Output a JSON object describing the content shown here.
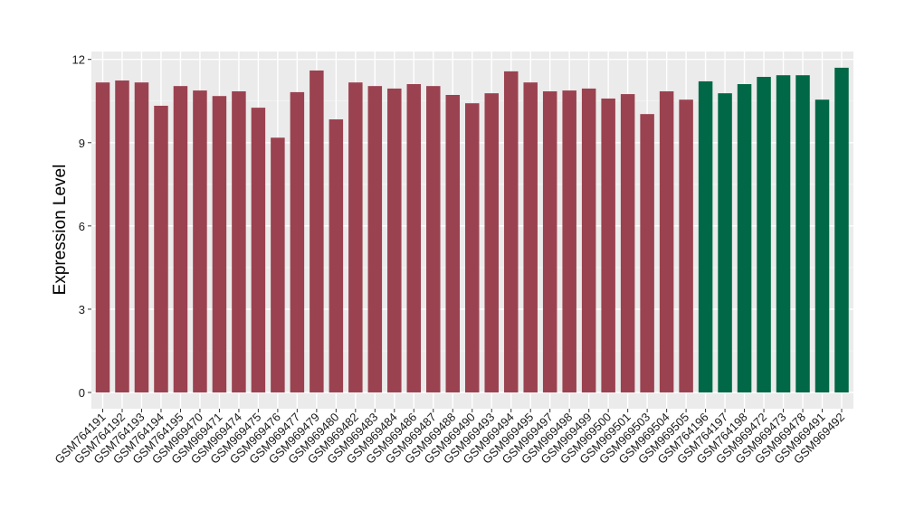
{
  "chart_data": {
    "type": "bar",
    "title": "",
    "xlabel": "",
    "ylabel": "Expression Level",
    "ylim": [
      0,
      12
    ],
    "yticks": [
      0,
      3,
      6,
      9,
      12
    ],
    "grid": true,
    "colors": {
      "group1": "#9B4250",
      "group2": "#006846",
      "panel": "#EBEBEB"
    },
    "categories": [
      "GSM764191",
      "GSM764192",
      "GSM764193",
      "GSM764194",
      "GSM764195",
      "GSM969470",
      "GSM969471",
      "GSM969474",
      "GSM969475",
      "GSM969476",
      "GSM969477",
      "GSM969479",
      "GSM969480",
      "GSM969482",
      "GSM969483",
      "GSM969484",
      "GSM969486",
      "GSM969487",
      "GSM969488",
      "GSM969490",
      "GSM969493",
      "GSM969494",
      "GSM969495",
      "GSM969497",
      "GSM969498",
      "GSM969499",
      "GSM969500",
      "GSM969501",
      "GSM969503",
      "GSM969504",
      "GSM969505",
      "GSM764196",
      "GSM764197",
      "GSM764198",
      "GSM969472",
      "GSM969473",
      "GSM969478",
      "GSM969491",
      "GSM969492"
    ],
    "values": [
      11.17,
      11.24,
      11.17,
      10.33,
      11.04,
      10.88,
      10.68,
      10.85,
      10.26,
      9.18,
      10.82,
      11.6,
      9.84,
      11.17,
      11.04,
      10.95,
      11.11,
      11.04,
      10.72,
      10.42,
      10.78,
      11.57,
      11.17,
      10.85,
      10.88,
      10.95,
      10.59,
      10.75,
      10.03,
      10.85,
      10.55,
      11.21,
      10.78,
      11.11,
      11.37,
      11.43,
      11.43,
      10.55,
      11.7
    ],
    "groups": [
      "group1",
      "group1",
      "group1",
      "group1",
      "group1",
      "group1",
      "group1",
      "group1",
      "group1",
      "group1",
      "group1",
      "group1",
      "group1",
      "group1",
      "group1",
      "group1",
      "group1",
      "group1",
      "group1",
      "group1",
      "group1",
      "group1",
      "group1",
      "group1",
      "group1",
      "group1",
      "group1",
      "group1",
      "group1",
      "group1",
      "group1",
      "group2",
      "group2",
      "group2",
      "group2",
      "group2",
      "group2",
      "group2",
      "group2"
    ]
  }
}
